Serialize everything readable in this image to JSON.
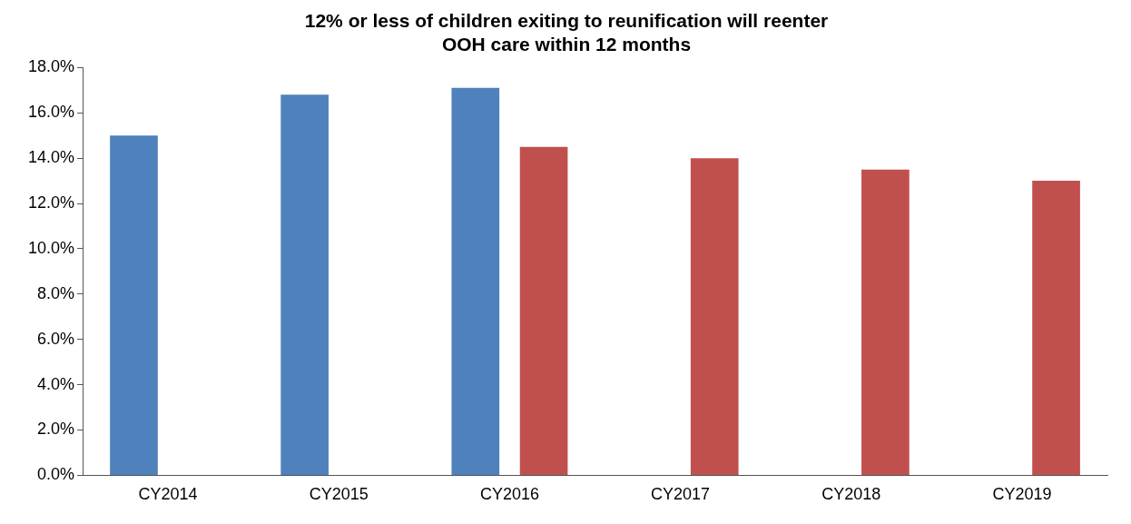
{
  "chart_data": {
    "type": "bar",
    "title": "12% or less of children exiting to reunification will reenter\nOOH care within 12 months",
    "categories": [
      "CY2014",
      "CY2015",
      "CY2016",
      "CY2017",
      "CY2018",
      "CY2019"
    ],
    "series": [
      {
        "color": "#4f81bd",
        "values": [
          15.0,
          16.8,
          17.1,
          null,
          null,
          null
        ]
      },
      {
        "color": "#c0504d",
        "values": [
          null,
          null,
          14.5,
          14.0,
          13.5,
          13.0
        ]
      }
    ],
    "ylim": [
      0,
      18
    ],
    "yticks": [
      {
        "value": 0,
        "label": "0.0%"
      },
      {
        "value": 2,
        "label": "2.0%"
      },
      {
        "value": 4,
        "label": "4.0%"
      },
      {
        "value": 6,
        "label": "6.0%"
      },
      {
        "value": 8,
        "label": "8.0%"
      },
      {
        "value": 10,
        "label": "10.0%"
      },
      {
        "value": 12,
        "label": "12.0%"
      },
      {
        "value": 14,
        "label": "14.0%"
      },
      {
        "value": 16,
        "label": "16.0%"
      },
      {
        "value": 18,
        "label": "18.0%"
      }
    ],
    "grid": false,
    "legend": false
  }
}
